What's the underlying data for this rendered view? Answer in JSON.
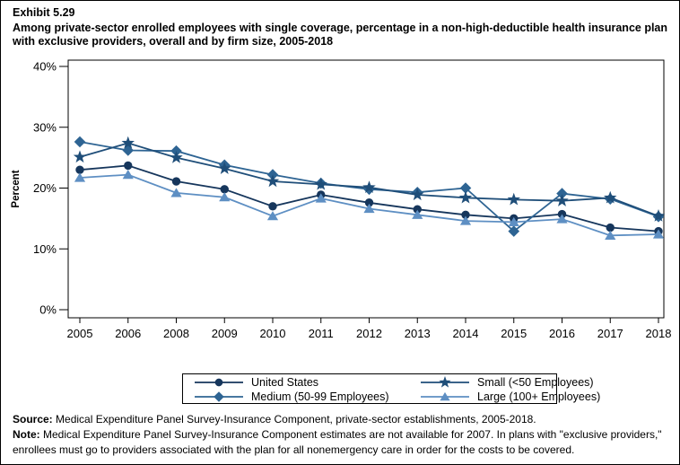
{
  "header": {
    "exhibit": "Exhibit 5.29",
    "title": "Among private-sector enrolled employees with single coverage, percentage in a non-high-deductible health insurance plan with exclusive providers, overall and by firm size, 2005-2018"
  },
  "chart_data": {
    "type": "line",
    "title": "",
    "xlabel": "",
    "ylabel": "Percent",
    "ylim": [
      0,
      40
    ],
    "yticks": [
      "0%",
      "10%",
      "20%",
      "30%",
      "40%"
    ],
    "ytick_values": [
      0,
      10,
      20,
      30,
      40
    ],
    "grid": false,
    "legend_position": "bottom-box",
    "x": [
      "2005",
      "2006",
      "2008",
      "2009",
      "2010",
      "2011",
      "2012",
      "2013",
      "2014",
      "2015",
      "2016",
      "2017",
      "2018"
    ],
    "series": [
      {
        "name": "United States",
        "marker": "circle",
        "color": "#16365C",
        "values": [
          23.0,
          23.7,
          21.1,
          19.8,
          17.0,
          18.9,
          17.6,
          16.5,
          15.6,
          15.0,
          15.7,
          13.5,
          12.9
        ]
      },
      {
        "name": "Medium (50-99 Employees)",
        "marker": "diamond",
        "color": "#2E6493",
        "values": [
          27.6,
          26.2,
          26.1,
          23.8,
          22.2,
          20.8,
          19.8,
          19.3,
          20.0,
          12.9,
          19.1,
          18.2,
          15.3
        ]
      },
      {
        "name": "Small (<50 Employees)",
        "marker": "star",
        "color": "#1F4E79",
        "values": [
          25.1,
          27.4,
          25.0,
          23.2,
          21.1,
          20.6,
          20.1,
          18.9,
          18.4,
          18.1,
          17.9,
          18.4,
          15.4
        ]
      },
      {
        "name": "Large (100+ Employees)",
        "marker": "triangle",
        "color": "#5E8FC3",
        "values": [
          21.7,
          22.2,
          19.2,
          18.5,
          15.4,
          18.3,
          16.6,
          15.6,
          14.6,
          14.4,
          14.9,
          12.2,
          12.4
        ]
      }
    ],
    "legend_order": [
      0,
      2,
      1,
      3
    ]
  },
  "footer": {
    "source_label": "Source:",
    "source_text": " Medical Expenditure Panel Survey-Insurance Component, private-sector establishments, 2005-2018.",
    "note_label": "Note:",
    "note_text": " Medical Expenditure Panel Survey-Insurance Component estimates are not available for 2007. In plans with \"exclusive providers,\" enrollees must go to providers associated with the plan for all nonemergency care in order for the costs to be covered."
  }
}
